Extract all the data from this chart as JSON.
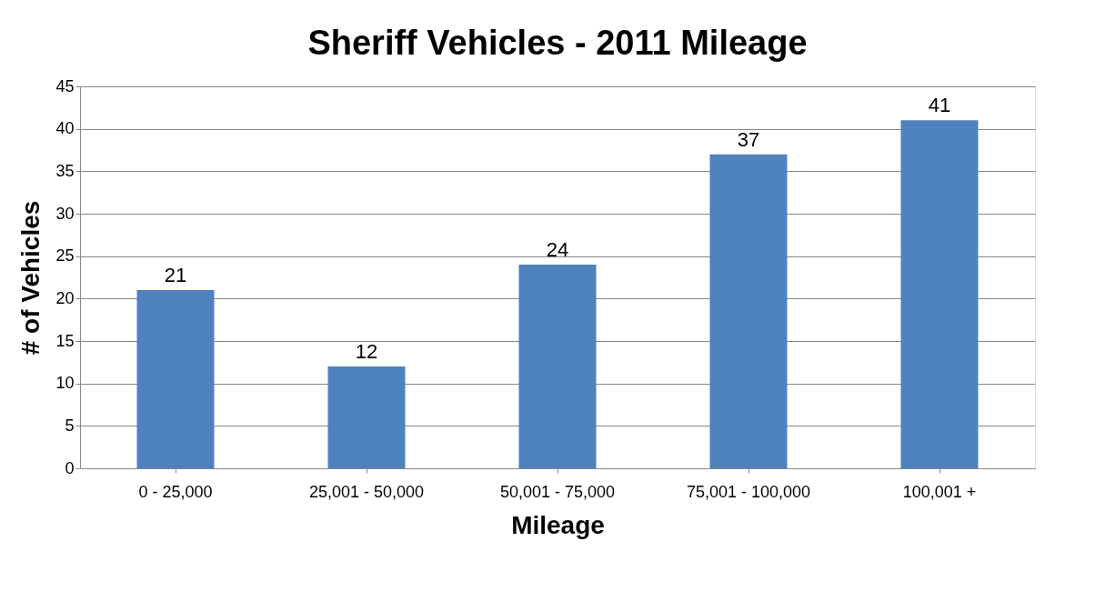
{
  "chart_data": {
    "type": "bar",
    "title": "Sheriff Vehicles - 2011 Mileage",
    "xlabel": "Mileage",
    "ylabel": "# of Vehicles",
    "categories": [
      "0 - 25,000",
      "25,001 - 50,000",
      "50,001 - 75,000",
      "75,001 - 100,000",
      "100,001 +"
    ],
    "values": [
      21,
      12,
      24,
      37,
      41
    ],
    "color": "#4f81bd",
    "ylim": [
      0,
      45
    ],
    "yticks": [
      0,
      5,
      10,
      15,
      20,
      25,
      30,
      35,
      40,
      45
    ],
    "grid": "y",
    "data_labels": true
  }
}
